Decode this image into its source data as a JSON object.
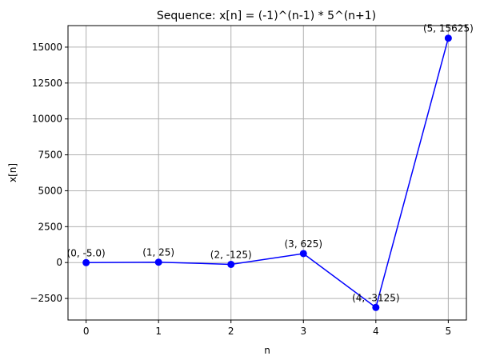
{
  "chart_data": {
    "type": "line",
    "title": "Sequence: x[n] = (-1)^(n-1) * 5^(n+1)",
    "xlabel": "n",
    "ylabel": "x[n]",
    "xlim": [
      -0.25,
      5.25
    ],
    "ylim": [
      -4000,
      16500
    ],
    "x_ticks": [
      0,
      1,
      2,
      3,
      4,
      5
    ],
    "x_tick_labels": [
      "0",
      "1",
      "2",
      "3",
      "4",
      "5"
    ],
    "y_ticks": [
      -2500,
      0,
      2500,
      5000,
      7500,
      10000,
      12500,
      15000
    ],
    "y_tick_labels": [
      "−2500",
      "0",
      "2500",
      "5000",
      "7500",
      "10000",
      "12500",
      "15000"
    ],
    "grid": true,
    "series": [
      {
        "color": "#0000ff",
        "marker": "circle",
        "x": [
          0,
          1,
          2,
          3,
          4,
          5
        ],
        "values": [
          -5,
          25,
          -125,
          625,
          -3125,
          15625
        ],
        "point_labels": [
          "(0, -5.0)",
          "(1, 25)",
          "(2, -125)",
          "(3, 625)",
          "(4, -3125)",
          "(5, 15625)"
        ]
      }
    ]
  }
}
